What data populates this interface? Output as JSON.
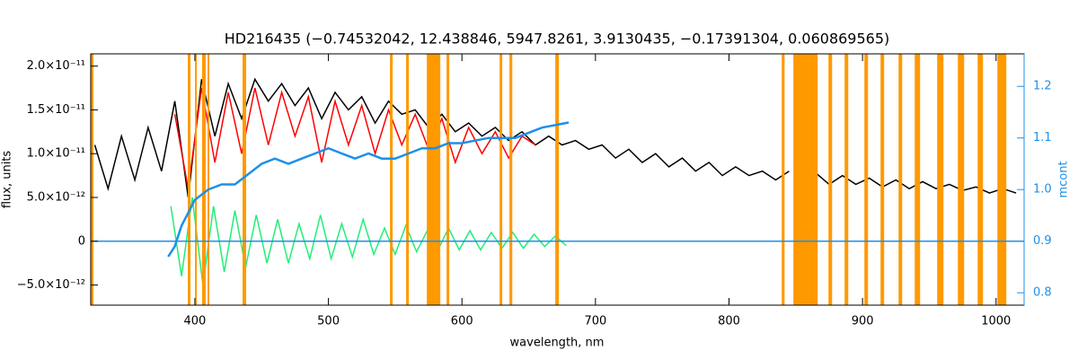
{
  "chart_data": {
    "type": "line",
    "title": "HD216435   (−0.74532042, 12.438846, 5947.8261, 3.9130435, −0.17391304, 0.060869565)",
    "x_label": "wavelength, nm",
    "y_label": "flux, units",
    "y2_label": "mcont",
    "xlim": [
      322,
      1021
    ],
    "xticks": [
      400,
      500,
      600,
      700,
      800,
      900,
      1000
    ],
    "ylim": [
      -7.3e-12,
      2.14e-11
    ],
    "yticks": [
      {
        "value": -5e-12,
        "label": "−5.0×10⁻¹²"
      },
      0,
      {
        "value": 5e-12,
        "label": "5.0×10⁻¹²"
      },
      {
        "value": 1e-11,
        "label": "1.0×10⁻¹¹"
      },
      {
        "value": 1.5e-11,
        "label": "1.5×10⁻¹¹"
      },
      {
        "value": 2e-11,
        "label": "2.0×10⁻¹¹"
      }
    ],
    "y2lim": [
      0.776,
      1.263
    ],
    "y2ticks": [
      0.8,
      0.9,
      {
        "value": 1,
        "label": "1.0"
      },
      1.1,
      1.2
    ],
    "y2_color": "#1e90e8",
    "band_color": "#ff9900",
    "bands": [
      [
        322,
        324
      ],
      [
        394.7,
        396.7
      ],
      [
        400.1,
        401.4
      ],
      [
        405.4,
        408.1
      ],
      [
        409.5,
        410.8
      ],
      [
        435.7,
        438.4
      ],
      [
        546.1,
        548.1
      ],
      [
        558.2,
        560.2
      ],
      [
        573.7,
        583.8
      ],
      [
        588.5,
        590.5
      ],
      [
        628.2,
        630.2
      ],
      [
        635.6,
        637.7
      ],
      [
        669.9,
        672.6
      ],
      [
        839.5,
        841.6
      ],
      [
        848.2,
        866.4
      ],
      [
        874.5,
        877.2
      ],
      [
        886.6,
        889.3
      ],
      [
        901.4,
        904.1
      ],
      [
        913.5,
        916.2
      ],
      [
        927.0,
        929.7
      ],
      [
        939.1,
        943.1
      ],
      [
        955.9,
        960.6
      ],
      [
        971.4,
        976.1
      ],
      [
        986.2,
        990.2
      ],
      [
        1001.0,
        1007.7
      ]
    ],
    "series": [
      {
        "color": "#000000",
        "x": [
          325,
          335,
          345,
          355,
          365,
          375,
          385,
          395,
          405,
          415,
          425,
          435,
          445,
          455,
          465,
          475,
          485,
          495,
          505,
          515,
          525,
          535,
          545,
          555,
          565,
          575,
          585,
          595,
          605,
          615,
          625,
          635,
          645,
          655,
          665,
          675,
          685,
          695,
          705,
          715,
          725,
          735,
          745,
          755,
          765,
          775,
          785,
          795,
          805,
          815,
          825,
          835,
          845,
          855,
          865,
          875,
          885,
          895,
          905,
          915,
          925,
          935,
          945,
          955,
          965,
          975,
          985,
          995,
          1005,
          1015
        ],
        "values": [
          1.1e-11,
          6e-12,
          1.2e-11,
          7e-12,
          1.3e-11,
          8e-12,
          1.6e-11,
          5e-12,
          1.85e-11,
          1.2e-11,
          1.8e-11,
          1.4e-11,
          1.85e-11,
          1.6e-11,
          1.8e-11,
          1.55e-11,
          1.75e-11,
          1.4e-11,
          1.7e-11,
          1.5e-11,
          1.65e-11,
          1.35e-11,
          1.6e-11,
          1.45e-11,
          1.5e-11,
          1.3e-11,
          1.45e-11,
          1.25e-11,
          1.35e-11,
          1.2e-11,
          1.3e-11,
          1.15e-11,
          1.25e-11,
          1.1e-11,
          1.2e-11,
          1.1e-11,
          1.15e-11,
          1.05e-11,
          1.1e-11,
          9.5e-12,
          1.05e-11,
          9e-12,
          1e-11,
          8.5e-12,
          9.5e-12,
          8e-12,
          9e-12,
          7.5e-12,
          8.5e-12,
          7.5e-12,
          8e-12,
          7e-12,
          8e-12,
          null,
          7.8e-12,
          6.5e-12,
          7.5e-12,
          6.5e-12,
          7.2e-12,
          6.2e-12,
          7e-12,
          6e-12,
          6.8e-12,
          6e-12,
          6.5e-12,
          5.8e-12,
          6.2e-12,
          5.5e-12,
          6e-12,
          5.5e-12
        ]
      },
      {
        "color": "#ff0000",
        "x": [
          385,
          395,
          405,
          415,
          425,
          435,
          445,
          455,
          465,
          475,
          485,
          495,
          505,
          515,
          525,
          535,
          545,
          555,
          565,
          575,
          585,
          595,
          605,
          615,
          625,
          635,
          645,
          655
        ],
        "values": [
          1.45e-11,
          6e-12,
          1.75e-11,
          9e-12,
          1.7e-11,
          1e-11,
          1.75e-11,
          1.1e-11,
          1.7e-11,
          1.2e-11,
          1.65e-11,
          9e-12,
          1.6e-11,
          1.1e-11,
          1.55e-11,
          1e-11,
          1.5e-11,
          1.1e-11,
          1.45e-11,
          1.05e-11,
          1.4e-11,
          9e-12,
          1.3e-11,
          1e-11,
          1.25e-11,
          9.5e-12,
          1.2e-11,
          1.1e-11
        ]
      },
      {
        "color": "#22ee77",
        "x": [
          382,
          390,
          398,
          406,
          414,
          422,
          430,
          438,
          446,
          454,
          462,
          470,
          478,
          486,
          494,
          502,
          510,
          518,
          526,
          534,
          542,
          550,
          558,
          566,
          574,
          582,
          590,
          598,
          606,
          614,
          622,
          630,
          638,
          646,
          654,
          662,
          670,
          678
        ],
        "values": [
          4e-12,
          -4e-12,
          5e-12,
          -5e-12,
          4e-12,
          -3.5e-12,
          3.5e-12,
          -3e-12,
          3e-12,
          -2.5e-12,
          2.5e-12,
          -2.5e-12,
          2e-12,
          -2e-12,
          3e-12,
          -2e-12,
          2e-12,
          -1.8e-12,
          2.5e-12,
          -1.5e-12,
          1.5e-12,
          -1.5e-12,
          1.8e-12,
          -1.2e-12,
          1.2e-12,
          -1e-12,
          1.5e-12,
          -1e-12,
          1.2e-12,
          -1e-12,
          1e-12,
          -8e-13,
          1e-12,
          -8e-13,
          8e-13,
          -6e-13,
          6e-13,
          -5e-13
        ]
      },
      {
        "color": "#1e90e8",
        "x": [
          322,
          1021
        ],
        "values": [
          0,
          0
        ]
      },
      {
        "color": "#1e90e8",
        "axis": "y2",
        "x": [
          380,
          385,
          390,
          400,
          410,
          420,
          430,
          440,
          450,
          460,
          470,
          480,
          490,
          500,
          510,
          520,
          530,
          540,
          550,
          560,
          570,
          580,
          590,
          600,
          620,
          640,
          660,
          680
        ],
        "values": [
          0.87,
          0.89,
          0.93,
          0.98,
          1.0,
          1.01,
          1.01,
          1.03,
          1.05,
          1.06,
          1.05,
          1.06,
          1.07,
          1.08,
          1.07,
          1.06,
          1.07,
          1.06,
          1.06,
          1.07,
          1.08,
          1.08,
          1.09,
          1.09,
          1.1,
          1.1,
          1.12,
          1.13
        ]
      }
    ]
  }
}
